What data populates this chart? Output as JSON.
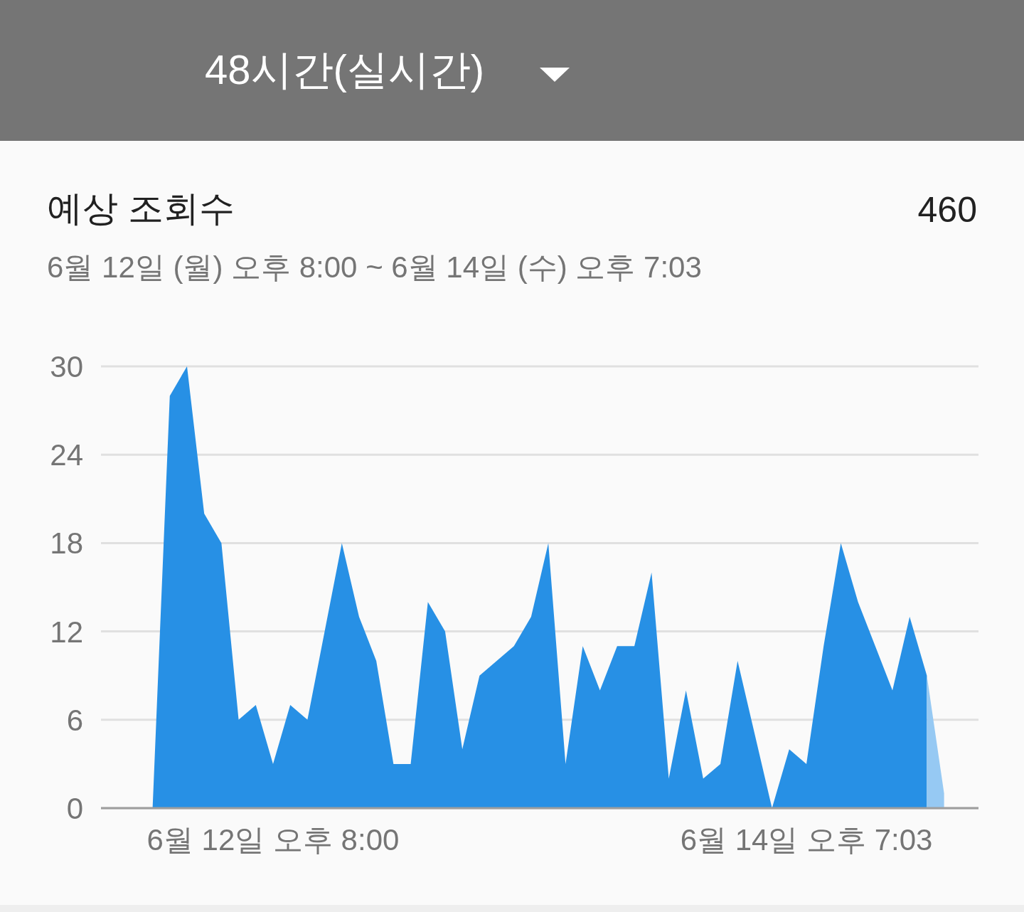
{
  "chart_data": {
    "type": "area",
    "title": "예상 조회수",
    "subtitle": "6월 12일 (월) 오후 8:00 ~ 6월 14일 (수) 오후 7:03",
    "annotations": [
      "48시간(실시간)",
      "460"
    ],
    "categories": [
      null,
      null,
      null,
      null,
      null,
      null,
      null,
      null,
      null,
      null,
      "6월 12일 오후 8:00",
      null,
      null,
      null,
      null,
      null,
      null,
      null,
      null,
      null,
      null,
      null,
      null,
      null,
      null,
      null,
      null,
      null,
      null,
      null,
      null,
      null,
      null,
      null,
      null,
      null,
      null,
      null,
      null,
      null,
      null,
      "6월 14일 오후 7:03",
      null,
      null,
      null,
      null,
      null,
      null,
      null,
      null,
      null,
      null
    ],
    "ylim": [
      0,
      30
    ],
    "yticks": [
      0,
      6,
      12,
      18,
      24,
      30
    ],
    "grid": "y",
    "series": [
      {
        "color": "#2790e5",
        "values": [
          null,
          null,
          null,
          0,
          28,
          30,
          20,
          18,
          6,
          7,
          3,
          7,
          6,
          12,
          18,
          13,
          10,
          3,
          3,
          14,
          12,
          4,
          9,
          10,
          11,
          13,
          18,
          3,
          11,
          8,
          11,
          11,
          16,
          2,
          8,
          2,
          3,
          10,
          5,
          0,
          4,
          3,
          11,
          18,
          14,
          11,
          8,
          13,
          9,
          null,
          null,
          null
        ]
      },
      {
        "color": "#96c9f3",
        "values": [
          null,
          null,
          null,
          null,
          null,
          null,
          null,
          null,
          null,
          null,
          null,
          null,
          null,
          null,
          null,
          null,
          null,
          null,
          null,
          null,
          null,
          null,
          null,
          null,
          null,
          null,
          null,
          null,
          null,
          null,
          null,
          null,
          null,
          null,
          null,
          null,
          null,
          null,
          null,
          null,
          null,
          null,
          null,
          null,
          null,
          null,
          null,
          null,
          9,
          1,
          null,
          null
        ]
      }
    ]
  }
}
